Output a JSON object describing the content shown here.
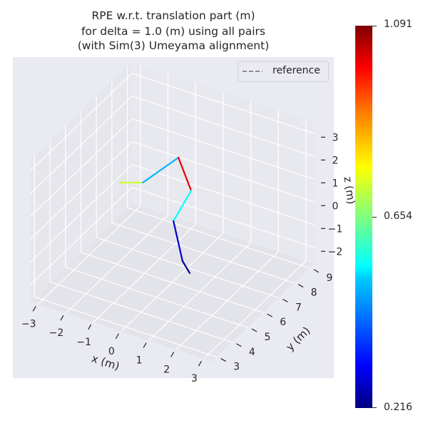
{
  "chart_data": {
    "type": "line3d",
    "title_lines": [
      "RPE w.r.t. translation part (m)",
      "for delta = 1.0 (m) using all pairs",
      "(with Sim(3) Umeyama alignment)"
    ],
    "xlabel": "x (m)",
    "ylabel": "y (m)",
    "zlabel": "z (m)",
    "xticks": [
      -3,
      -2,
      -1,
      0,
      1,
      2,
      3
    ],
    "yticks": [
      3,
      4,
      5,
      6,
      7,
      8,
      9
    ],
    "zticks": [
      -2,
      -1,
      0,
      1,
      2,
      3
    ],
    "xlim": [
      -3.3,
      3.3
    ],
    "ylim": [
      2.7,
      9.3
    ],
    "zlim": [
      -2.7,
      3.5
    ],
    "grid": true,
    "legend": {
      "placement": "top-right",
      "entries": [
        {
          "label": "reference",
          "style": "dashed",
          "color": "#808080"
        }
      ]
    },
    "trajectory": [
      {
        "x": -1.89,
        "y": 6.0,
        "z": 0.92
      },
      {
        "x": -1.06,
        "y": 6.0,
        "z": 1.25
      },
      {
        "x": -0.33,
        "y": 7.0,
        "z": 1.99
      },
      {
        "x": 0.13,
        "y": 7.0,
        "z": 0.73
      },
      {
        "x": -0.23,
        "y": 6.5,
        "z": -0.43
      },
      {
        "x": 0.1,
        "y": 6.5,
        "z": -2.05
      },
      {
        "x": 0.36,
        "y": 6.5,
        "z": -2.47
      }
    ],
    "segment_errors": [
      0.72,
      0.48,
      1.0,
      0.55,
      0.28,
      0.22
    ],
    "colorbar": {
      "colormap": "jet",
      "min": 0.216,
      "max": 1.091,
      "ticks": [
        "1.091",
        "0.654",
        "0.216"
      ],
      "tick_values": [
        1.091,
        0.654,
        0.216
      ]
    },
    "colors": {
      "pane": "#eaeaf2",
      "grid": "#ffffff",
      "reference": "#808080"
    }
  }
}
